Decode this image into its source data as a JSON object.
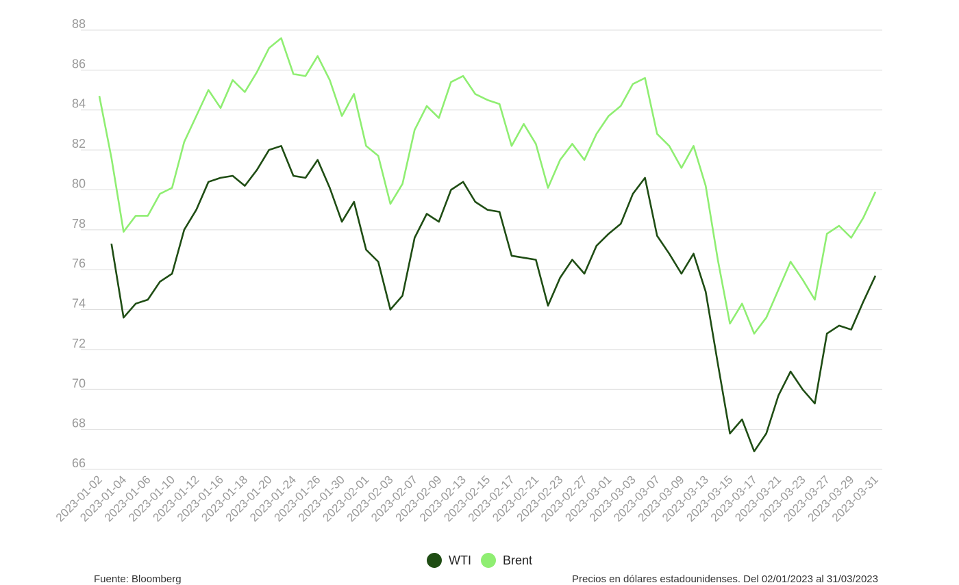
{
  "chart_data": {
    "type": "line",
    "ylim": [
      66,
      88
    ],
    "yticks": [
      66,
      68,
      70,
      72,
      74,
      76,
      78,
      80,
      82,
      84,
      86,
      88
    ],
    "grid": true,
    "legend_position": "bottom-center",
    "x": [
      "2023-01-02",
      "2023-01-03",
      "2023-01-04",
      "2023-01-05",
      "2023-01-06",
      "2023-01-09",
      "2023-01-10",
      "2023-01-11",
      "2023-01-12",
      "2023-01-13",
      "2023-01-16",
      "2023-01-17",
      "2023-01-18",
      "2023-01-19",
      "2023-01-20",
      "2023-01-23",
      "2023-01-24",
      "2023-01-25",
      "2023-01-26",
      "2023-01-27",
      "2023-01-30",
      "2023-01-31",
      "2023-02-01",
      "2023-02-02",
      "2023-02-03",
      "2023-02-06",
      "2023-02-07",
      "2023-02-08",
      "2023-02-09",
      "2023-02-10",
      "2023-02-13",
      "2023-02-14",
      "2023-02-15",
      "2023-02-16",
      "2023-02-17",
      "2023-02-20",
      "2023-02-21",
      "2023-02-22",
      "2023-02-23",
      "2023-02-24",
      "2023-02-27",
      "2023-02-28",
      "2023-03-01",
      "2023-03-02",
      "2023-03-03",
      "2023-03-06",
      "2023-03-07",
      "2023-03-08",
      "2023-03-09",
      "2023-03-10",
      "2023-03-13",
      "2023-03-14",
      "2023-03-15",
      "2023-03-16",
      "2023-03-17",
      "2023-03-20",
      "2023-03-21",
      "2023-03-22",
      "2023-03-23",
      "2023-03-24",
      "2023-03-27",
      "2023-03-28",
      "2023-03-29",
      "2023-03-30",
      "2023-03-31"
    ],
    "xtick_labels": [
      "2023-01-02",
      "2023-01-04",
      "2023-01-06",
      "2023-01-10",
      "2023-01-12",
      "2023-01-16",
      "2023-01-18",
      "2023-01-20",
      "2023-01-24",
      "2023-01-26",
      "2023-01-30",
      "2023-02-01",
      "2023-02-03",
      "2023-02-07",
      "2023-02-09",
      "2023-02-13",
      "2023-02-15",
      "2023-02-17",
      "2023-02-21",
      "2023-02-23",
      "2023-02-27",
      "2023-03-01",
      "2023-03-03",
      "2023-03-07",
      "2023-03-09",
      "2023-03-13",
      "2023-03-15",
      "2023-03-17",
      "2023-03-21",
      "2023-03-23",
      "2023-03-27",
      "2023-03-29",
      "2023-03-31"
    ],
    "series": [
      {
        "name": "WTI",
        "color": "#1f4d14",
        "values": [
          null,
          77.3,
          73.6,
          74.3,
          74.5,
          75.4,
          75.8,
          78.0,
          79.0,
          80.4,
          80.6,
          80.7,
          80.2,
          81.0,
          82.0,
          82.2,
          80.7,
          80.6,
          81.5,
          80.1,
          78.4,
          79.4,
          77.0,
          76.4,
          74.0,
          74.7,
          77.6,
          78.8,
          78.4,
          80.0,
          80.4,
          79.4,
          79.0,
          78.9,
          76.7,
          76.6,
          76.5,
          74.2,
          75.6,
          76.5,
          75.8,
          77.2,
          77.8,
          78.3,
          79.8,
          80.6,
          77.7,
          76.8,
          75.8,
          76.8,
          74.9,
          71.3,
          67.8,
          68.5,
          66.9,
          67.8,
          69.7,
          70.9,
          70.0,
          69.3,
          72.8,
          73.2,
          73.0,
          74.4,
          75.7
        ]
      },
      {
        "name": "Brent",
        "color": "#8fee72",
        "values": [
          84.7,
          81.6,
          77.9,
          78.7,
          78.7,
          79.8,
          80.1,
          82.4,
          83.7,
          85.0,
          84.1,
          85.5,
          84.9,
          85.9,
          87.1,
          87.6,
          85.8,
          85.7,
          86.7,
          85.5,
          83.7,
          84.8,
          82.2,
          81.7,
          79.3,
          80.3,
          83.0,
          84.2,
          83.6,
          85.4,
          85.7,
          84.8,
          84.5,
          84.3,
          82.2,
          83.3,
          82.3,
          80.1,
          81.5,
          82.3,
          81.5,
          82.8,
          83.7,
          84.2,
          85.3,
          85.6,
          82.8,
          82.2,
          81.1,
          82.2,
          80.2,
          76.5,
          73.3,
          74.3,
          72.8,
          73.6,
          75.0,
          76.4,
          75.5,
          74.5,
          77.8,
          78.2,
          77.6,
          78.6,
          79.9
        ]
      }
    ]
  },
  "footer": {
    "source": "Fuente: Bloomberg",
    "note": "Precios en dólares estadounidenses. Del 02/01/2023 al 31/03/2023"
  }
}
